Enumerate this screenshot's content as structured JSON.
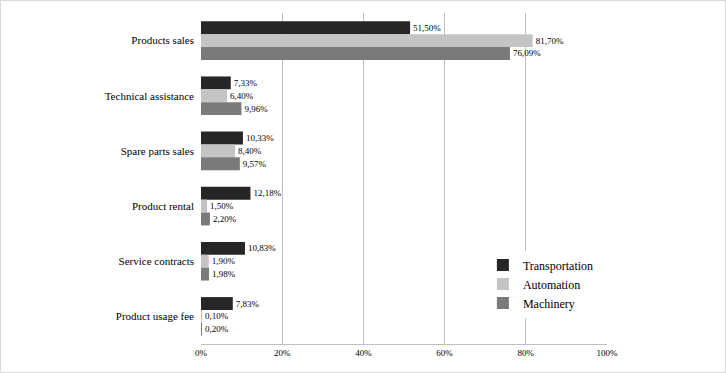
{
  "chart_data": {
    "type": "bar",
    "orientation": "horizontal",
    "categories": [
      "Products sales",
      "Technical assistance",
      "Spare parts sales",
      "Product rental",
      "Service contracts",
      "Product usage fee"
    ],
    "series": [
      {
        "name": "Transportation",
        "color": "#262626",
        "values": [
          51.5,
          7.33,
          10.33,
          12.18,
          10.83,
          7.83
        ],
        "value_labels": [
          "51,50%",
          "7,33%",
          "10,33%",
          "12,18%",
          "10,83%",
          "7,83%"
        ]
      },
      {
        "name": "Automation",
        "color": "#c4c4c4",
        "values": [
          81.7,
          6.4,
          8.4,
          1.5,
          1.9,
          0.1
        ],
        "value_labels": [
          "81,70%",
          "6,40%",
          "8,40%",
          "1,50%",
          "1,90%",
          "0,10%"
        ]
      },
      {
        "name": "Machinery",
        "color": "#7a7a7a",
        "values": [
          76.09,
          9.96,
          9.57,
          2.2,
          1.98,
          0.2
        ],
        "value_labels": [
          "76,09%",
          "9,96%",
          "9,57%",
          "2,20%",
          "1,98%",
          "0,20%"
        ]
      }
    ],
    "xlim": [
      0,
      100
    ],
    "xticks": [
      {
        "value": 0,
        "label": "0%"
      },
      {
        "value": 20,
        "label": "20%"
      },
      {
        "value": 40,
        "label": "40%"
      },
      {
        "value": 60,
        "label": "60%"
      },
      {
        "value": 80,
        "label": "80%"
      },
      {
        "value": 100,
        "label": "100%"
      }
    ],
    "grid": true,
    "legend": "bottom right",
    "data_labels": true
  }
}
